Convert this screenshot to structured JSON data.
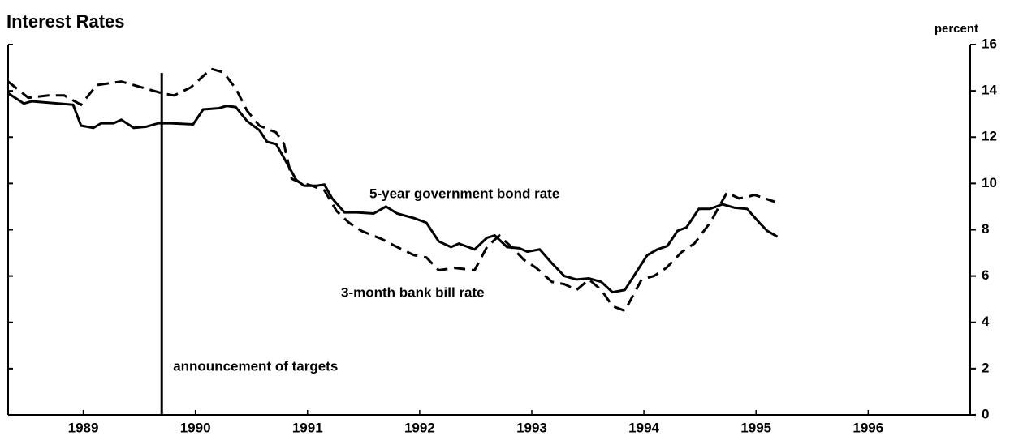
{
  "chart_data": {
    "type": "line",
    "title": "Interest Rates",
    "y_axis_label": "percent",
    "xlim": [
      1988.83,
      1997.41
    ],
    "ylim": [
      0,
      16
    ],
    "yticks": [
      0,
      2,
      4,
      6,
      8,
      10,
      12,
      14,
      16
    ],
    "xticks": [
      {
        "value": 1989.5,
        "label": "1989"
      },
      {
        "value": 1990.5,
        "label": "1990"
      },
      {
        "value": 1991.5,
        "label": "1991"
      },
      {
        "value": 1992.5,
        "label": "1992"
      },
      {
        "value": 1993.5,
        "label": "1993"
      },
      {
        "value": 1994.5,
        "label": "1994"
      },
      {
        "value": 1995.5,
        "label": "1995"
      },
      {
        "value": 1996.5,
        "label": "1996"
      }
    ],
    "event": {
      "x": 1990.2,
      "label": "announcement of targets"
    },
    "series": [
      {
        "name": "5-year government bond rate",
        "color": "#000000",
        "dash": "solid",
        "x": [
          1988.83,
          1988.97,
          1989.04,
          1989.41,
          1989.48,
          1989.59,
          1989.66,
          1989.77,
          1989.84,
          1989.95,
          1990.06,
          1990.17,
          1990.28,
          1990.48,
          1990.57,
          1990.71,
          1990.78,
          1990.86,
          1990.96,
          1991.07,
          1991.14,
          1991.22,
          1991.29,
          1991.4,
          1991.47,
          1991.58,
          1991.65,
          1991.72,
          1991.83,
          1991.94,
          1992.09,
          1992.2,
          1992.3,
          1992.45,
          1992.56,
          1992.67,
          1992.78,
          1992.85,
          1992.99,
          1993.1,
          1993.17,
          1993.28,
          1993.39,
          1993.46,
          1993.57,
          1993.68,
          1993.79,
          1993.9,
          1994.01,
          1994.12,
          1994.22,
          1994.33,
          1994.41,
          1994.53,
          1994.62,
          1994.71,
          1994.8,
          1994.88,
          1994.99,
          1995.09,
          1995.2,
          1995.31,
          1995.42,
          1995.53,
          1995.6,
          1995.69
        ],
        "values": [
          13.9,
          13.45,
          13.55,
          13.4,
          12.5,
          12.4,
          12.6,
          12.6,
          12.75,
          12.4,
          12.45,
          12.6,
          12.6,
          12.55,
          13.2,
          13.25,
          13.35,
          13.3,
          12.7,
          12.3,
          11.8,
          11.7,
          11.1,
          10.15,
          9.9,
          9.9,
          9.95,
          9.35,
          8.75,
          8.75,
          8.7,
          9.0,
          8.7,
          8.5,
          8.3,
          7.5,
          7.25,
          7.4,
          7.15,
          7.65,
          7.75,
          7.25,
          7.2,
          7.05,
          7.15,
          6.55,
          6.0,
          5.85,
          5.9,
          5.75,
          5.3,
          5.4,
          6.0,
          6.9,
          7.15,
          7.3,
          7.95,
          8.1,
          8.9,
          8.9,
          9.1,
          8.95,
          8.9,
          8.3,
          7.95,
          7.7
        ]
      },
      {
        "name": "3-month bank bill rate",
        "color": "#000000",
        "dash": "dashed",
        "x": [
          1988.83,
          1989.01,
          1989.19,
          1989.33,
          1989.48,
          1989.62,
          1989.84,
          1990.02,
          1990.2,
          1990.31,
          1990.46,
          1990.64,
          1990.75,
          1990.86,
          1990.96,
          1991.07,
          1991.22,
          1991.29,
          1991.36,
          1991.43,
          1991.54,
          1991.65,
          1991.76,
          1991.87,
          1991.98,
          1992.16,
          1992.3,
          1992.45,
          1992.56,
          1992.67,
          1992.81,
          1992.99,
          1993.1,
          1993.21,
          1993.32,
          1993.43,
          1993.54,
          1993.68,
          1993.79,
          1993.9,
          1994.01,
          1994.12,
          1994.22,
          1994.33,
          1994.48,
          1994.59,
          1994.7,
          1994.84,
          1994.95,
          1995.09,
          1995.24,
          1995.35,
          1995.49,
          1995.67
        ],
        "values": [
          14.4,
          13.7,
          13.8,
          13.8,
          13.4,
          14.25,
          14.4,
          14.15,
          13.9,
          13.8,
          14.15,
          14.95,
          14.8,
          14.1,
          13.15,
          12.5,
          12.2,
          11.7,
          10.2,
          10.05,
          9.9,
          9.7,
          8.8,
          8.3,
          7.95,
          7.6,
          7.25,
          6.9,
          6.8,
          6.25,
          6.35,
          6.25,
          7.25,
          7.75,
          7.25,
          6.7,
          6.35,
          5.75,
          5.65,
          5.4,
          5.85,
          5.4,
          4.7,
          4.5,
          5.85,
          6.0,
          6.35,
          7.05,
          7.4,
          8.3,
          9.6,
          9.35,
          9.5,
          9.2
        ]
      }
    ]
  }
}
